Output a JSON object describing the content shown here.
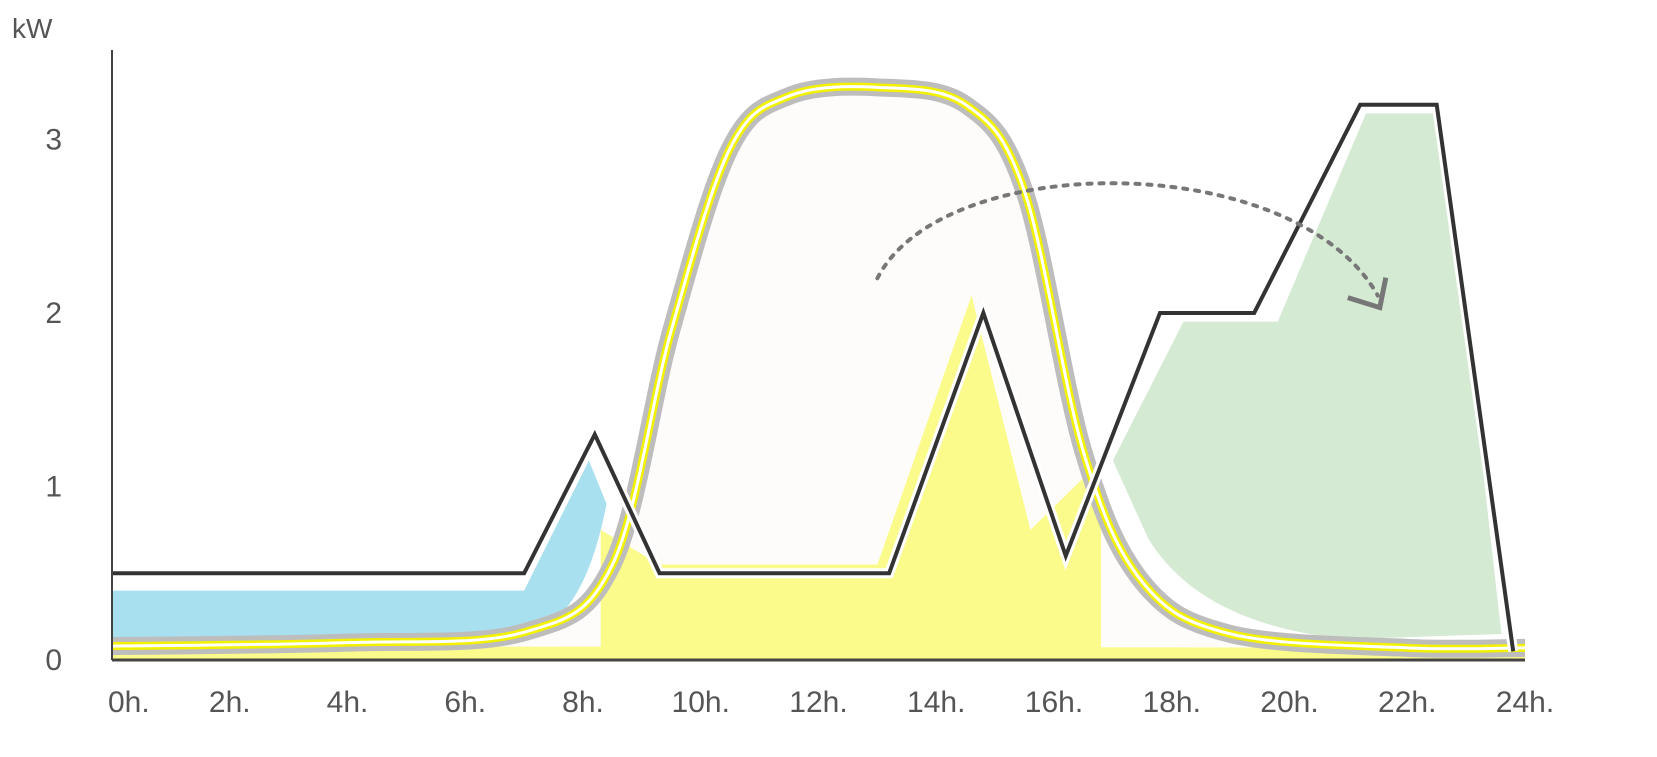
{
  "chart_data": {
    "type": "area",
    "title": "",
    "ylabel": "kW",
    "xlabel": "",
    "xlim": [
      0,
      24
    ],
    "ylim": [
      0,
      3.4
    ],
    "grid": false,
    "x_ticks": [
      0,
      2,
      4,
      6,
      8,
      10,
      12,
      14,
      16,
      18,
      20,
      22,
      24
    ],
    "x_tick_labels": [
      "0h.",
      "2h.",
      "4h.",
      "6h.",
      "8h.",
      "10h.",
      "12h.",
      "14h.",
      "16h.",
      "18h.",
      "20h.",
      "22h.",
      "24h."
    ],
    "y_ticks": [
      0,
      1,
      2,
      3
    ],
    "y_tick_labels": [
      "0",
      "1",
      "2",
      "3"
    ],
    "series": [
      {
        "kind": "solar-production-curve",
        "color": "#f2f200",
        "fill": "#ffffff",
        "x": [
          0,
          4,
          7,
          8.5,
          9.5,
          10.5,
          11.5,
          13,
          14.5,
          15.5,
          16.5,
          17.5,
          19,
          22,
          24
        ],
        "y": [
          0.08,
          0.1,
          0.16,
          0.55,
          1.9,
          2.95,
          3.25,
          3.3,
          3.2,
          2.7,
          1.2,
          0.45,
          0.15,
          0.07,
          0.07
        ]
      },
      {
        "kind": "self-consumed-solar",
        "color": "#fbfb8c",
        "x": [
          8.3,
          9.3,
          13,
          14.6,
          15.6,
          16.8
        ],
        "y": [
          0.75,
          0.55,
          0.55,
          2.1,
          0.75,
          1.15
        ]
      },
      {
        "kind": "grid-consumption-morning",
        "color": "#a8e0f0",
        "x": [
          0,
          7,
          8.1,
          8.4
        ],
        "y": [
          0.4,
          0.4,
          1.15,
          0.9
        ]
      },
      {
        "kind": "battery-discharge-evening",
        "color": "#d4ead2",
        "x": [
          17,
          18.2,
          19.8,
          21.3,
          22.6,
          23.6
        ],
        "y": [
          1.15,
          1.95,
          1.95,
          3.15,
          3.15,
          0.15
        ]
      },
      {
        "kind": "consumption-line",
        "color": "#333333",
        "x": [
          0,
          7,
          8.2,
          9.3,
          13.2,
          14.8,
          16.2,
          17.8,
          19.4,
          21.2,
          22.5,
          23.8
        ],
        "y": [
          0.5,
          0.5,
          1.3,
          0.5,
          0.5,
          2.0,
          0.6,
          2.0,
          2.0,
          3.2,
          3.2,
          0.05
        ]
      }
    ],
    "annotations": [
      {
        "kind": "dotted-arrow",
        "color": "#777777",
        "x": [
          13,
          17.5,
          21.5
        ],
        "y": [
          2.2,
          2.9,
          2.1
        ]
      }
    ]
  }
}
